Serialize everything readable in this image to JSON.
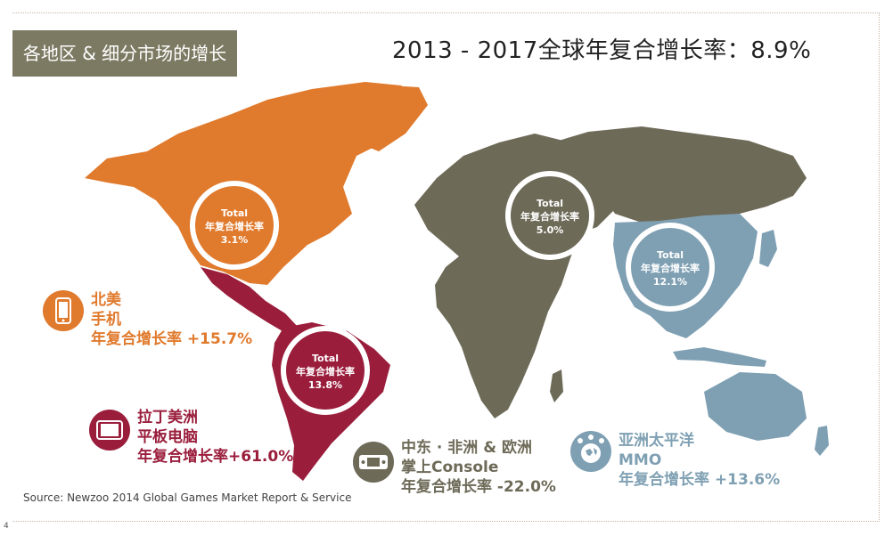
{
  "section_tag": "各地区 & 细分市场的增长",
  "headline": "2013 - 2017全球年复合增长率：8.9%",
  "colors": {
    "north_america": "#e07a2d",
    "latin_america": "#9a1e3c",
    "emea": "#6e6a58",
    "apac": "#7fa0b3",
    "tag_bg": "#7d7a63"
  },
  "regions": {
    "north_america": {
      "circle_line1": "Total",
      "circle_line2": "年复合增长率",
      "circle_value": "3.1%",
      "name": "北美",
      "segment": "手机",
      "cagr_text": "年复合增长率 +15.7%",
      "icon": "smartphone-icon"
    },
    "latin_america": {
      "circle_line1": "Total",
      "circle_line2": "年复合增长率",
      "circle_value": "13.8%",
      "name": "拉丁美洲",
      "segment": "平板电脑",
      "cagr_text": "年复合增长率+61.0%",
      "icon": "tablet-icon"
    },
    "emea": {
      "circle_line1": "Total",
      "circle_line2": "年复合增长率",
      "circle_value": "5.0%",
      "name": "中东 · 非洲 & 欧洲",
      "segment": "掌上Console",
      "cagr_text": "年复合增长率 -22.0%",
      "icon": "handheld-console-icon"
    },
    "apac": {
      "circle_line1": "Total",
      "circle_line2": "年复合增长率",
      "circle_value": "12.1%",
      "name": "亚洲太平洋",
      "segment": "MMO",
      "cagr_text": "年复合增长率 +13.6%",
      "icon": "mmo-globe-icon"
    }
  },
  "source": "Source: Newzoo 2014 Global Games Market Report & Service",
  "page_number": "4"
}
